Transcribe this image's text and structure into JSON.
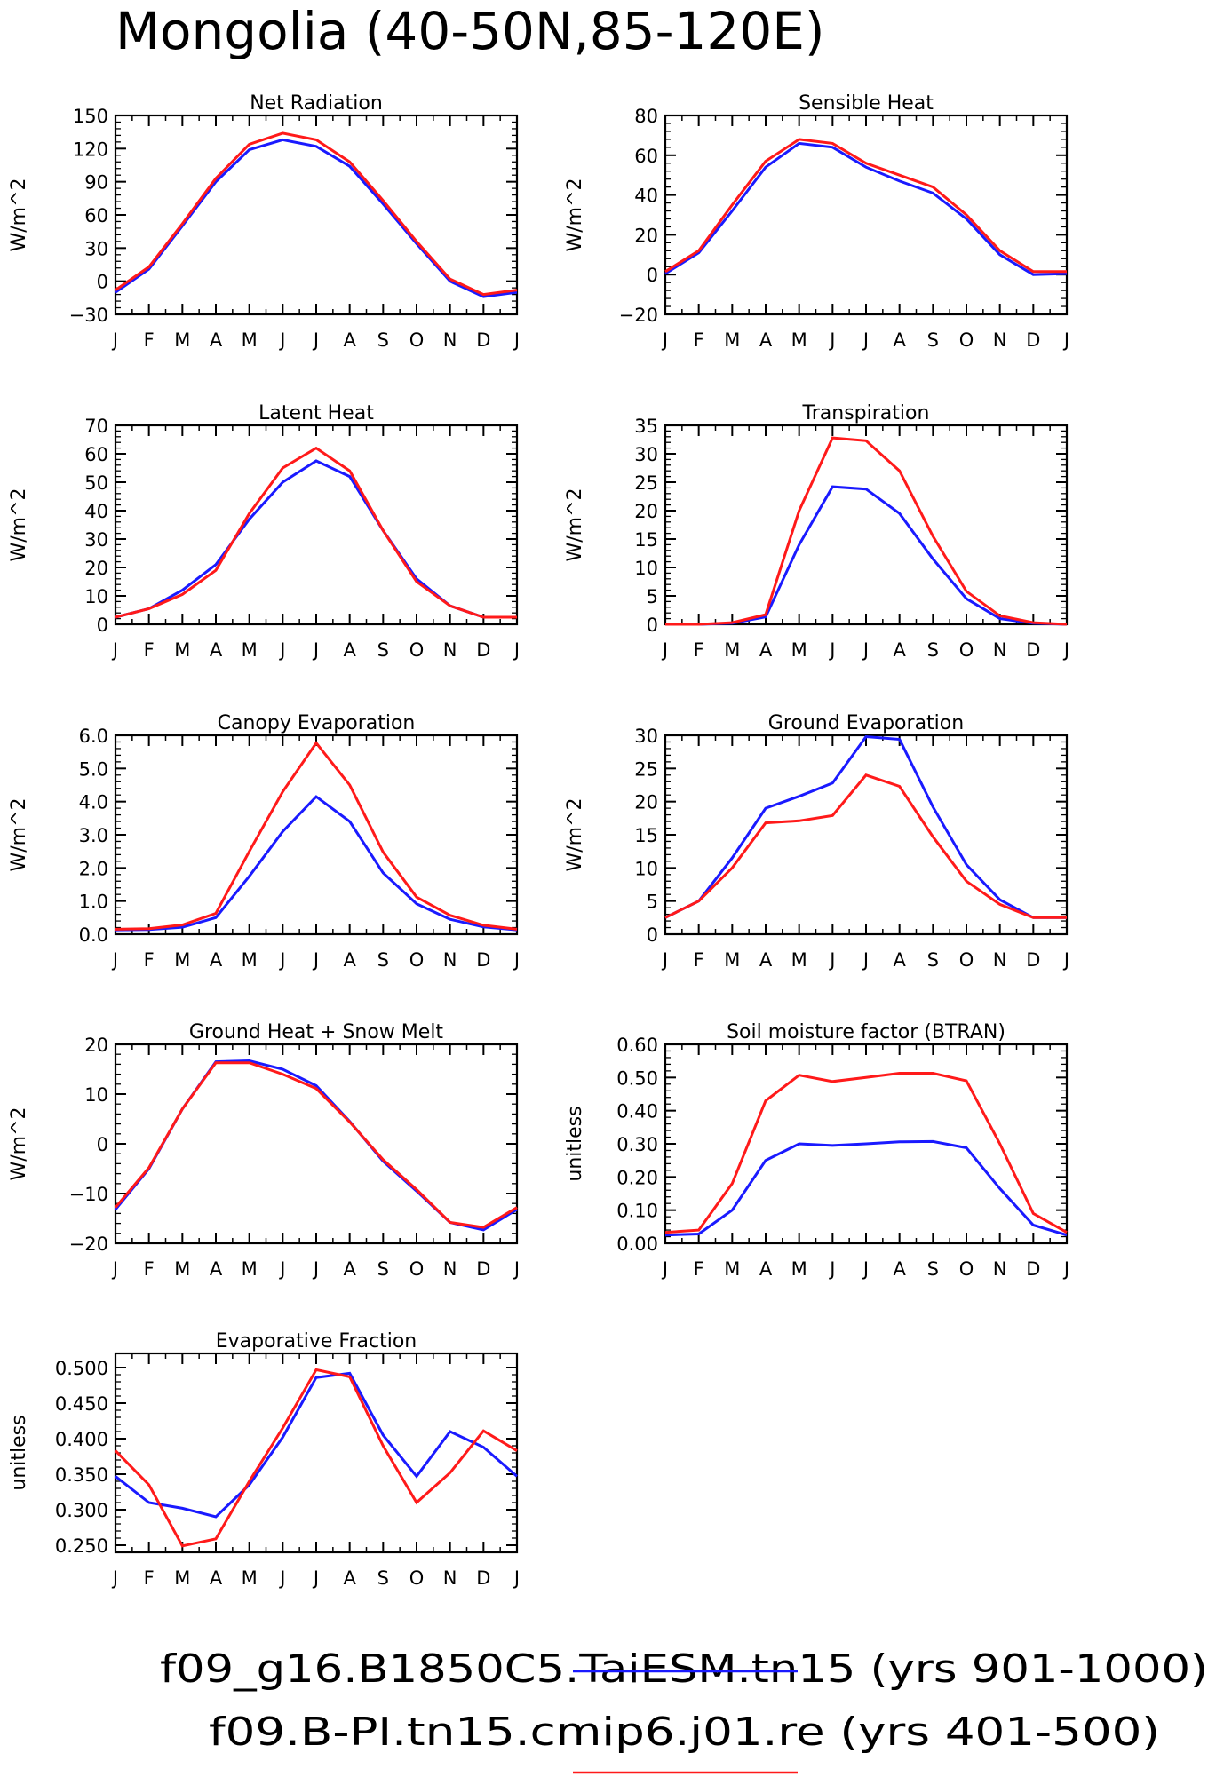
{
  "title": "Mongolia (40-50N,85-120E)",
  "legend": {
    "entries": [
      {
        "label": "f09_g16.B1850C5.TaiESM.tn15 (yrs 901-1000)",
        "color": "#1a1aff"
      },
      {
        "label": "f09.B-PI.tn15.cmip6.j01.re (yrs 401-500)",
        "color": "#ff1a1a"
      }
    ]
  },
  "colors": {
    "series_a": "#1a1aff",
    "series_b": "#ff1a1a"
  },
  "chart_data": [
    {
      "type": "line",
      "title": "Net Radiation",
      "ylabel": "W/m^2",
      "x": [
        "J",
        "F",
        "M",
        "A",
        "M",
        "J",
        "J",
        "A",
        "S",
        "O",
        "N",
        "D",
        "J"
      ],
      "ylim": [
        -30,
        150
      ],
      "yticks": [
        "-30",
        "0",
        "30",
        "60",
        "90",
        "120",
        "150"
      ],
      "series": [
        {
          "values": [
            -10,
            11,
            50,
            90,
            119,
            128,
            122,
            104,
            70,
            34,
            0,
            -14,
            -10
          ]
        },
        {
          "values": [
            -8,
            13,
            52,
            93,
            124,
            134,
            128,
            108,
            73,
            36,
            2,
            -12,
            -8
          ]
        }
      ]
    },
    {
      "type": "line",
      "title": "Sensible Heat",
      "ylabel": "W/m^2",
      "x": [
        "J",
        "F",
        "M",
        "A",
        "M",
        "J",
        "J",
        "A",
        "S",
        "O",
        "N",
        "D",
        "J"
      ],
      "ylim": [
        -20,
        80
      ],
      "yticks": [
        "-20",
        "0",
        "20",
        "40",
        "60",
        "80"
      ],
      "series": [
        {
          "values": [
            0.5,
            11,
            32,
            54,
            66,
            64,
            54,
            47,
            41,
            28,
            10,
            0,
            0.5
          ]
        },
        {
          "values": [
            1.5,
            12,
            35,
            57,
            68,
            66,
            56,
            50,
            44,
            30,
            12,
            1.5,
            1.5
          ]
        }
      ]
    },
    {
      "type": "line",
      "title": "Latent Heat",
      "ylabel": "W/m^2",
      "x": [
        "J",
        "F",
        "M",
        "A",
        "M",
        "J",
        "J",
        "A",
        "S",
        "O",
        "N",
        "D",
        "J"
      ],
      "ylim": [
        0,
        70
      ],
      "yticks": [
        "0",
        "10",
        "20",
        "30",
        "40",
        "50",
        "60",
        "70"
      ],
      "series": [
        {
          "values": [
            2.5,
            5.5,
            12,
            21,
            37,
            50,
            57.5,
            52,
            33,
            16,
            6.5,
            2.5,
            2.5
          ]
        },
        {
          "values": [
            2.5,
            5.5,
            10.5,
            19,
            39,
            55,
            62,
            54,
            33,
            15,
            6.5,
            2.5,
            2.5
          ]
        }
      ]
    },
    {
      "type": "line",
      "title": "Transpiration",
      "ylabel": "W/m^2",
      "x": [
        "J",
        "F",
        "M",
        "A",
        "M",
        "J",
        "J",
        "A",
        "S",
        "O",
        "N",
        "D",
        "J"
      ],
      "ylim": [
        0,
        35
      ],
      "yticks": [
        "0",
        "5",
        "10",
        "15",
        "20",
        "25",
        "30",
        "35"
      ],
      "series": [
        {
          "values": [
            0,
            0,
            0.2,
            1.3,
            14,
            24.2,
            23.8,
            19.5,
            11.5,
            4.5,
            1,
            0.2,
            0
          ]
        },
        {
          "values": [
            0,
            0,
            0.3,
            1.7,
            20,
            32.8,
            32.3,
            27,
            15.5,
            5.8,
            1.5,
            0.3,
            0
          ]
        }
      ]
    },
    {
      "type": "line",
      "title": "Canopy Evaporation",
      "ylabel": "W/m^2",
      "x": [
        "J",
        "F",
        "M",
        "A",
        "M",
        "J",
        "J",
        "A",
        "S",
        "O",
        "N",
        "D",
        "J"
      ],
      "ylim": [
        0,
        6
      ],
      "yticks": [
        "0.0",
        "1.0",
        "2.0",
        "3.0",
        "4.0",
        "5.0",
        "6.0"
      ],
      "series": [
        {
          "values": [
            0.13,
            0.14,
            0.21,
            0.5,
            1.75,
            3.1,
            4.15,
            3.4,
            1.85,
            0.92,
            0.45,
            0.22,
            0.13
          ]
        },
        {
          "values": [
            0.15,
            0.17,
            0.28,
            0.63,
            2.5,
            4.3,
            5.77,
            4.5,
            2.48,
            1.12,
            0.57,
            0.27,
            0.15
          ]
        }
      ]
    },
    {
      "type": "line",
      "title": "Ground Evaporation",
      "ylabel": "W/m^2",
      "x": [
        "J",
        "F",
        "M",
        "A",
        "M",
        "J",
        "J",
        "A",
        "S",
        "O",
        "N",
        "D",
        "J"
      ],
      "ylim": [
        0,
        30
      ],
      "yticks": [
        "0",
        "5",
        "10",
        "15",
        "20",
        "25",
        "30"
      ],
      "series": [
        {
          "values": [
            2.5,
            5,
            11.5,
            19,
            20.8,
            22.8,
            29.8,
            29.4,
            19.2,
            10.5,
            5.2,
            2.5,
            2.5
          ]
        },
        {
          "values": [
            2.5,
            5,
            10,
            16.8,
            17.1,
            17.9,
            24,
            22.3,
            14.7,
            8,
            4.5,
            2.5,
            2.5
          ]
        }
      ]
    },
    {
      "type": "line",
      "title": "Ground Heat + Snow Melt",
      "ylabel": "W/m^2",
      "x": [
        "J",
        "F",
        "M",
        "A",
        "M",
        "J",
        "J",
        "A",
        "S",
        "O",
        "N",
        "D",
        "J"
      ],
      "ylim": [
        -20,
        20
      ],
      "yticks": [
        "-20",
        "-10",
        "0",
        "10",
        "20"
      ],
      "series": [
        {
          "values": [
            -13.2,
            -5,
            7,
            16.5,
            16.7,
            15,
            11.7,
            4.5,
            -3.5,
            -9.5,
            -15.8,
            -17.3,
            -13.2
          ]
        },
        {
          "values": [
            -12.8,
            -4.8,
            7,
            16.3,
            16.3,
            14,
            11.1,
            4.4,
            -3.2,
            -9.2,
            -15.8,
            -16.8,
            -12.8
          ]
        }
      ]
    },
    {
      "type": "line",
      "title": "Soil moisture factor (BTRAN)",
      "ylabel": "unitless",
      "x": [
        "J",
        "F",
        "M",
        "A",
        "M",
        "J",
        "J",
        "A",
        "S",
        "O",
        "N",
        "D",
        "J"
      ],
      "ylim": [
        0,
        0.6
      ],
      "yticks": [
        "0.00",
        "0.10",
        "0.20",
        "0.30",
        "0.40",
        "0.50",
        "0.60"
      ],
      "series": [
        {
          "values": [
            0.025,
            0.028,
            0.1,
            0.25,
            0.3,
            0.295,
            0.3,
            0.306,
            0.307,
            0.288,
            0.165,
            0.055,
            0.025
          ]
        },
        {
          "values": [
            0.033,
            0.04,
            0.18,
            0.43,
            0.507,
            0.488,
            0.5,
            0.513,
            0.513,
            0.49,
            0.3,
            0.09,
            0.033
          ]
        }
      ]
    },
    {
      "type": "line",
      "title": "Evaporative Fraction",
      "ylabel": "unitless",
      "x": [
        "J",
        "F",
        "M",
        "A",
        "M",
        "J",
        "J",
        "A",
        "S",
        "O",
        "N",
        "D",
        "J"
      ],
      "ylim": [
        0.24,
        0.52
      ],
      "yticks": [
        "0.250",
        "0.300",
        "0.350",
        "0.400",
        "0.450",
        "0.500"
      ],
      "ytick_values": [
        0.25,
        0.3,
        0.35,
        0.4,
        0.45,
        0.5
      ],
      "series": [
        {
          "values": [
            0.347,
            0.31,
            0.302,
            0.29,
            0.335,
            0.402,
            0.486,
            0.492,
            0.405,
            0.347,
            0.41,
            0.388,
            0.347
          ]
        },
        {
          "values": [
            0.383,
            0.335,
            0.249,
            0.259,
            0.34,
            0.415,
            0.497,
            0.487,
            0.39,
            0.31,
            0.352,
            0.411,
            0.383
          ]
        }
      ]
    }
  ]
}
